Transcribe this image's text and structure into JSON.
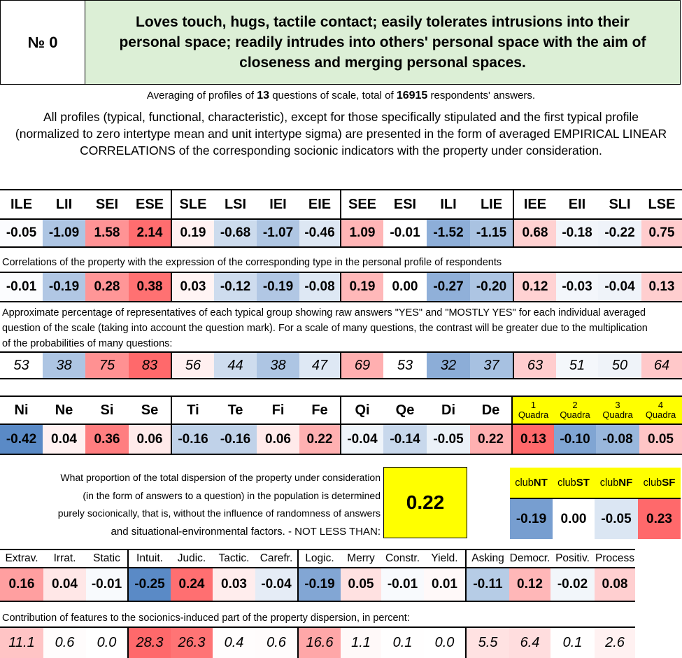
{
  "header": {
    "number_label": "№ 0",
    "title": "Loves touch, hugs, tactile contact; easily tolerates intrusions into their personal space; readily intrudes into others' personal space with the aim of closeness and merging personal spaces."
  },
  "averaging": {
    "prefix": "Averaging of profiles of ",
    "questions": "13",
    "middle": " questions of scale, total of ",
    "answers": "16915",
    "suffix": " respondents' answers."
  },
  "intro": "All profiles (typical, functional, characteristic), except for those specifically stipulated and the first typical profile (normalized to zero intertype mean and unit intertype sigma) are presented in the form of averaged EMPIRICAL LINEAR CORRELATIONS of the corresponding socionic indicators with the property under consideration.",
  "types": [
    "ILE",
    "LII",
    "SEI",
    "ESE",
    "SLE",
    "LSI",
    "IEI",
    "EIE",
    "SEE",
    "ESI",
    "ILI",
    "LIE",
    "IEE",
    "EII",
    "SLI",
    "LSE"
  ],
  "type_profile": [
    "-0.05",
    "-1.09",
    "1.58",
    "2.14",
    "0.19",
    "-0.68",
    "-1.07",
    "-0.46",
    "1.09",
    "-0.01",
    "-1.52",
    "-1.15",
    "0.68",
    "-0.18",
    "-0.22",
    "0.75"
  ],
  "correlation_note": "Correlations of the property with the expression of the corresponding type in the personal profile of respondents",
  "type_correlations": [
    "-0.01",
    "-0.19",
    "0.28",
    "0.38",
    "0.03",
    "-0.12",
    "-0.19",
    "-0.08",
    "0.19",
    "0.00",
    "-0.27",
    "-0.20",
    "0.12",
    "-0.03",
    "-0.04",
    "0.13"
  ],
  "percentage_note": "Approximate percentage of representatives of each typical group showing raw answers \"YES\" and \"MOSTLY YES\" for each individual averaged question of the scale (taking into account the question mark). For a scale of many questions, the contrast will be greater due to the multiplication of the probabilities of many questions:",
  "type_percentages": [
    "53",
    "38",
    "75",
    "83",
    "56",
    "44",
    "38",
    "47",
    "69",
    "53",
    "32",
    "37",
    "63",
    "51",
    "50",
    "64"
  ],
  "functions": [
    "Ni",
    "Ne",
    "Si",
    "Se",
    "Ti",
    "Te",
    "Fi",
    "Fe",
    "Qi",
    "Qe",
    "Di",
    "De"
  ],
  "function_values": [
    "-0.42",
    "0.04",
    "0.36",
    "0.06",
    "-0.16",
    "-0.16",
    "0.06",
    "0.22",
    "-0.04",
    "-0.14",
    "-0.05",
    "0.22"
  ],
  "quadras": [
    {
      "num": "1",
      "word": "Quadra"
    },
    {
      "num": "2",
      "word": "Quadra"
    },
    {
      "num": "3",
      "word": "Quadra"
    },
    {
      "num": "4",
      "word": "Quadra"
    }
  ],
  "quadra_values": [
    "0.13",
    "-0.10",
    "-0.08",
    "0.05"
  ],
  "proportion_text": [
    "What proportion of the total dispersion of the property under consideration",
    "(in the form of answers to a question) in the population is determined",
    "purely socionically, that is, without the influence of randomness of answers",
    "and situational-environmental factors. - NOT LESS THAN:"
  ],
  "proportion_value": "0.22",
  "clubs": [
    {
      "pre": "club",
      "b": "NT"
    },
    {
      "pre": "club",
      "b": "ST"
    },
    {
      "pre": "club",
      "b": "NF"
    },
    {
      "pre": "club",
      "b": "SF"
    }
  ],
  "club_values": [
    "-0.19",
    "0.00",
    "-0.05",
    "0.23"
  ],
  "traits": [
    "Extrav.",
    "Irrat.",
    "Static",
    "Intuit.",
    "Judic.",
    "Tactic.",
    "Carefr.",
    "Logic.",
    "Merry",
    "Constr.",
    "Yield.",
    "Asking",
    "Democr.",
    "Positiv.",
    "Process"
  ],
  "trait_values": [
    "0.16",
    "0.04",
    "-0.01",
    "-0.25",
    "0.24",
    "0.03",
    "-0.04",
    "-0.19",
    "0.05",
    "-0.01",
    "0.01",
    "-0.11",
    "0.12",
    "-0.02",
    "0.08"
  ],
  "contribution_note": "Contribution of features to the socionics-induced part of the property dispersion, in percent:",
  "trait_contributions": [
    "11.1",
    "0.6",
    "0.0",
    "28.3",
    "26.3",
    "0.4",
    "0.6",
    "16.6",
    "1.1",
    "0.1",
    "0.0",
    "5.5",
    "6.4",
    "0.1",
    "2.6"
  ],
  "colors": {
    "header_bg": "#dcefd6",
    "highlight": "#ffff00",
    "positive": "#f8696b",
    "negative": "#5a8ac6"
  }
}
